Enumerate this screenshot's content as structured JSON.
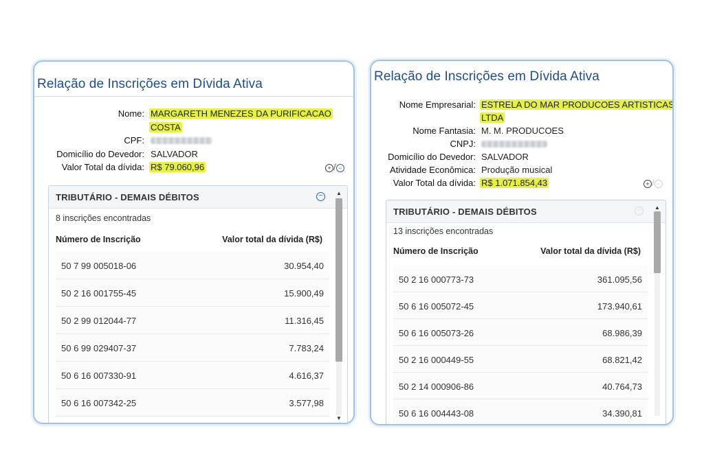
{
  "left": {
    "title": "Relação de Inscrições em Dívida Ativa",
    "fields": {
      "nome_label": "Nome:",
      "nome_value_line1": "MARGARETH MENEZES DA PURIFICACAO",
      "nome_value_line2": "COSTA",
      "cpf_label": "CPF:",
      "domicilio_label": "Domicílio do Devedor:",
      "domicilio_value": "SALVADOR",
      "valor_label": "Valor Total da dívida:",
      "valor_value": "R$ 79.060,96"
    },
    "toggles": {
      "plus": "+",
      "slash": "/",
      "minus": "−"
    },
    "section": {
      "title": "TRIBUTÁRIO - DEMAIS DÉBITOS",
      "count": "8 inscrições encontradas",
      "col_numero": "Número de Inscrição",
      "col_valor": "Valor total da dívida (R$)",
      "rows": [
        {
          "numero": "50 7 99 005018-06",
          "valor": "30.954,40"
        },
        {
          "numero": "50 2 16 001755-45",
          "valor": "15.900,49"
        },
        {
          "numero": "50 2 99 012044-77",
          "valor": "11.316,45"
        },
        {
          "numero": "50 6 99 029407-37",
          "valor": "7.783,24"
        },
        {
          "numero": "50 6 16 007330-91",
          "valor": "4.616,37"
        },
        {
          "numero": "50 6 16 007342-25",
          "valor": "3.577,98"
        }
      ]
    }
  },
  "right": {
    "title": "Relação de Inscrições em Dívida Ativa",
    "fields": {
      "nome_label": "Nome Empresarial:",
      "nome_value_line1": "ESTRELA DO MAR PRODUCOES ARTISTICAS",
      "nome_value_line2": "LTDA",
      "fantasia_label": "Nome Fantasia:",
      "fantasia_value": "M. M. PRODUCOES",
      "cnpj_label": "CNPJ:",
      "domicilio_label": "Domicílio do Devedor:",
      "domicilio_value": "SALVADOR",
      "atividade_label": "Atividade Econômica:",
      "atividade_value": "Produção musical",
      "valor_label": "Valor Total da dívida:",
      "valor_value": "R$ 1.071.854,43"
    },
    "toggles": {
      "plus": "+",
      "slash": "/",
      "minus": "−"
    },
    "section": {
      "title": "TRIBUTÁRIO - DEMAIS DÉBITOS",
      "count": "13 inscrições encontradas",
      "col_numero": "Número de Inscrição",
      "col_valor": "Valor total da dívida (R$)",
      "rows": [
        {
          "numero": "50 2 16 000773-73",
          "valor": "361.095,56"
        },
        {
          "numero": "50 6 16 005072-45",
          "valor": "173.940,61"
        },
        {
          "numero": "50 6 16 005073-26",
          "valor": "68.986,39"
        },
        {
          "numero": "50 2 16 000449-55",
          "valor": "68.821,42"
        },
        {
          "numero": "50 2 14 000906-86",
          "valor": "40.764,73"
        },
        {
          "numero": "50 6 16 004443-08",
          "valor": "34.390,81"
        }
      ]
    }
  },
  "colors": {
    "title_blue": "#1c4c95",
    "highlight": "#e6f23c",
    "panel_border": "#9cc3e6"
  }
}
